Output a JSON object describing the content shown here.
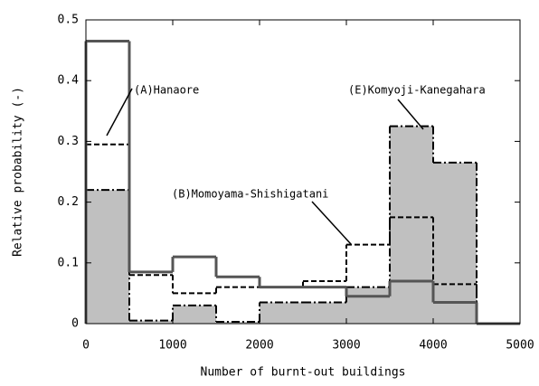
{
  "chart_data": {
    "type": "step-histogram",
    "xlabel": "Number of burnt-out buildings",
    "ylabel": "Relative probability (-)",
    "bins": [
      0,
      500,
      1000,
      1500,
      2000,
      2500,
      3000,
      3500,
      4000,
      4500,
      5000
    ],
    "xlim": [
      0,
      5000
    ],
    "xticks": [
      0,
      1000,
      2000,
      3000,
      4000,
      5000
    ],
    "ylim": [
      0,
      0.5
    ],
    "yticks": [
      0,
      0.1,
      0.2,
      0.3,
      0.4,
      0.5
    ],
    "series": [
      {
        "name": "(E)Komyoji-Kanegahara",
        "color": "#000000",
        "fill": "#c0c0c0",
        "dash": "9 3 2 3",
        "width": 2,
        "values": [
          0.22,
          0.005,
          0.03,
          0.003,
          0.035,
          0.035,
          0.06,
          0.325,
          0.265,
          0
        ]
      },
      {
        "name": "(B)Momoyama-Shishigatani",
        "color": "#000000",
        "dash": "6 3",
        "width": 2,
        "values": [
          0.295,
          0.08,
          0.05,
          0.06,
          0.06,
          0.07,
          0.13,
          0.175,
          0.065,
          0
        ]
      },
      {
        "name": "(A)Hanaore",
        "color": "#555555",
        "width": 3,
        "values": [
          0.465,
          0.085,
          0.11,
          0.077,
          0.06,
          0.06,
          0.045,
          0.07,
          0.035,
          0
        ]
      }
    ]
  }
}
